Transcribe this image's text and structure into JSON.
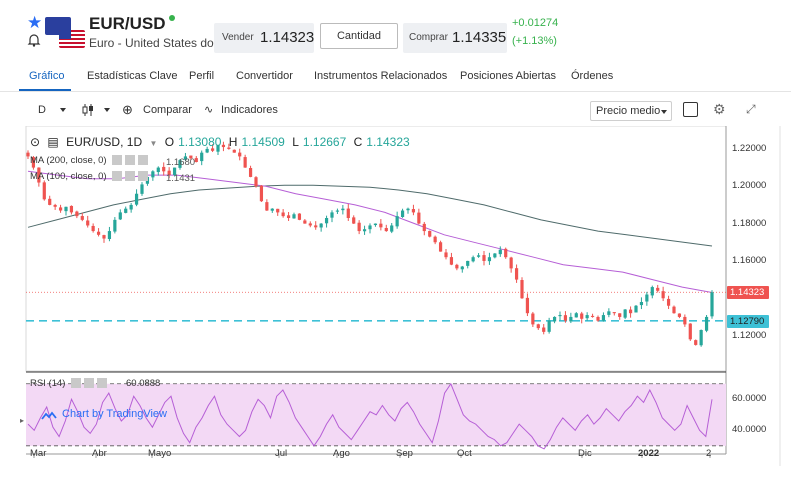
{
  "header": {
    "pair": "EUR/USD",
    "description": "Euro - United States dollar",
    "sell_label": "Vender",
    "sell_price": "1.14323",
    "quantity_label": "Cantidad",
    "buy_label": "Comprar",
    "buy_price": "1.14335",
    "change_abs": "+0.01274",
    "change_pct": "(+1.13%)",
    "icons": [
      "star-icon",
      "bell-icon",
      "eu-flag-icon",
      "us-flag-icon"
    ],
    "colors": {
      "positive": "#37b24d",
      "accent": "#2a6df4"
    }
  },
  "tabs": [
    {
      "label": "Gráfico",
      "active": true
    },
    {
      "label": "Estadísticas Clave"
    },
    {
      "label": "Perfil"
    },
    {
      "label": "Convertidor"
    },
    {
      "label": "Instrumentos Relacionados"
    },
    {
      "label": "Posiciones Abiertas"
    },
    {
      "label": "Órdenes"
    }
  ],
  "toolbar": {
    "interval": "D",
    "compare": "Comparar",
    "indicators": "Indicadores",
    "price_type": "Precio medio"
  },
  "chart": {
    "symbol_line": "EUR/USD, 1D",
    "ohlc": {
      "o_label": "O",
      "o": "1.13080",
      "h_label": "H",
      "h": "1.14509",
      "l_label": "L",
      "l": "1.12667",
      "c_label": "C",
      "c": "1.14323"
    },
    "ma200_label": "MA (200, close, 0)",
    "ma200_value": "1.1680",
    "ma100_label": "MA (100, close, 0)",
    "ma100_value": "1.1431",
    "rsi_label": "RSI (14)",
    "rsi_value": "60.0888",
    "watermark": "Chart by TradingView",
    "last_price_tag": "1.14323",
    "line_price_tag": "1.12790",
    "colors": {
      "up": "#26a69a",
      "down": "#ef5350",
      "ma100": "#b65fd6",
      "ma200": "#4f6b6b",
      "dash": "#3ec1d6",
      "rsi": "#b65fd6"
    }
  },
  "chart_data": {
    "type": "candlestick",
    "y_ticks": [
      "1.22000",
      "1.20000",
      "1.18000",
      "1.16000",
      "1.12000"
    ],
    "ylim": [
      1.108,
      1.228
    ],
    "rsi_ticks": [
      "60.0000",
      "40.0000"
    ],
    "rsi_lim": [
      26,
      75
    ],
    "x_ticks": [
      {
        "label": "Mar",
        "bold": false
      },
      {
        "label": "Abr",
        "bold": false
      },
      {
        "label": "Mayo",
        "bold": false
      },
      {
        "label": "Jul",
        "bold": false
      },
      {
        "label": "Ago",
        "bold": false
      },
      {
        "label": "Sep",
        "bold": false
      },
      {
        "label": "Oct",
        "bold": false
      },
      {
        "label": "Dic",
        "bold": false
      },
      {
        "label": "2022",
        "bold": true
      },
      {
        "label": "2",
        "bold": false
      }
    ],
    "close_series": [
      1.216,
      1.21,
      1.202,
      1.193,
      1.19,
      1.189,
      1.187,
      1.189,
      1.186,
      1.184,
      1.182,
      1.179,
      1.176,
      1.174,
      1.172,
      1.176,
      1.182,
      1.186,
      1.188,
      1.19,
      1.196,
      1.201,
      1.205,
      1.208,
      1.21,
      1.208,
      1.206,
      1.21,
      1.214,
      1.216,
      1.215,
      1.213,
      1.218,
      1.22,
      1.219,
      1.222,
      1.221,
      1.22,
      1.218,
      1.216,
      1.21,
      1.205,
      1.2,
      1.192,
      1.187,
      1.188,
      1.186,
      1.184,
      1.183,
      1.185,
      1.182,
      1.18,
      1.179,
      1.178,
      1.18,
      1.183,
      1.186,
      1.187,
      1.188,
      1.183,
      1.18,
      1.176,
      1.177,
      1.179,
      1.18,
      1.178,
      1.176,
      1.179,
      1.184,
      1.187,
      1.188,
      1.186,
      1.18,
      1.176,
      1.173,
      1.17,
      1.165,
      1.162,
      1.158,
      1.156,
      1.157,
      1.16,
      1.162,
      1.163,
      1.16,
      1.162,
      1.164,
      1.166,
      1.162,
      1.156,
      1.15,
      1.14,
      1.132,
      1.126,
      1.124,
      1.122,
      1.128,
      1.13,
      1.131,
      1.128,
      1.13,
      1.132,
      1.129,
      1.131,
      1.13,
      1.128,
      1.131,
      1.133,
      1.132,
      1.13,
      1.134,
      1.132,
      1.136,
      1.138,
      1.142,
      1.146,
      1.144,
      1.14,
      1.136,
      1.132,
      1.13,
      1.126,
      1.118,
      1.115,
      1.123,
      1.13,
      1.1432
    ],
    "ma100_series": [
      1.208,
      1.206,
      1.204,
      1.204,
      1.206,
      1.206,
      1.204,
      1.202,
      1.2,
      1.196,
      1.193,
      1.19,
      1.186,
      1.18,
      1.174,
      1.17,
      1.166,
      1.162,
      1.158,
      1.156,
      1.154,
      1.15,
      1.146,
      1.1431
    ],
    "ma200_series": [
      1.178,
      1.182,
      1.186,
      1.19,
      1.193,
      1.196,
      1.198,
      1.199,
      1.2,
      1.2005,
      1.2005,
      1.2,
      1.1995,
      1.198,
      1.196,
      1.193,
      1.19,
      1.186,
      1.182,
      1.179,
      1.176,
      1.174,
      1.172,
      1.17,
      1.168
    ],
    "hline_price": 1.1279,
    "last_price": 1.14323,
    "rsi_series": [
      44,
      40,
      48,
      55,
      42,
      36,
      46,
      60,
      52,
      42,
      38,
      44,
      58,
      64,
      54,
      46,
      50,
      62,
      56,
      48,
      42,
      50,
      58,
      62,
      48,
      38,
      32,
      42,
      48,
      56,
      62,
      50,
      44,
      40,
      36,
      40,
      52,
      60,
      56,
      48,
      62,
      66,
      58,
      48,
      42,
      36,
      30,
      36,
      44,
      50,
      42,
      38,
      34,
      40,
      46,
      52,
      50,
      56,
      50,
      46,
      54,
      58,
      52,
      44,
      38,
      32,
      46,
      64,
      70,
      60,
      50,
      46,
      44,
      40,
      36,
      34,
      30,
      32,
      38,
      44,
      40,
      36,
      30,
      28,
      34,
      42,
      48,
      44,
      40,
      46,
      50,
      44,
      48,
      54,
      50,
      46,
      52,
      56,
      62,
      58,
      66,
      58,
      48,
      44,
      40,
      44,
      56,
      48,
      40,
      36,
      60
    ]
  }
}
